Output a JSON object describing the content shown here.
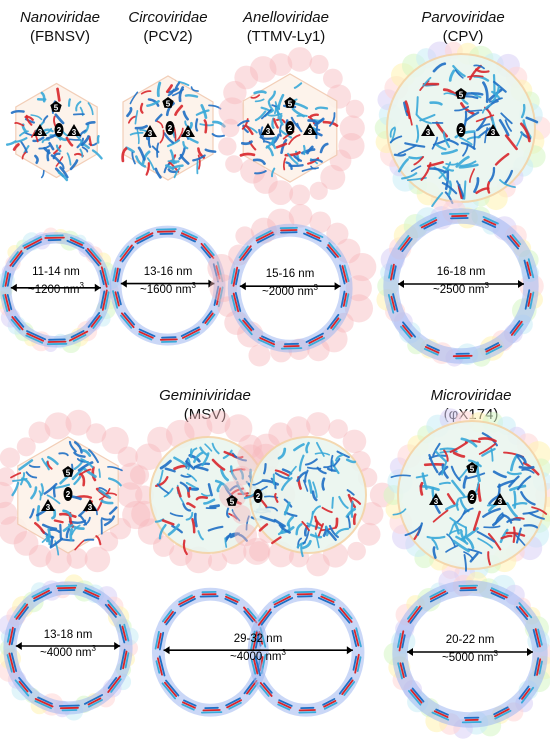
{
  "families": [
    {
      "name": "Nanoviridae",
      "strain": "(FBNSV)"
    },
    {
      "name": "Circoviridae",
      "strain": "(PCV2)"
    },
    {
      "name": "Anelloviridae",
      "strain": "(TTMV-Ly1)"
    },
    {
      "name": "Parvoviridae",
      "strain": "(CPV)"
    },
    {
      "name": "Geminiviridae",
      "strain": "(MSV)"
    },
    {
      "name": "Microviridae",
      "strain": "(φX174)"
    }
  ],
  "sections": [
    {
      "diameter": "11-14 nm",
      "volume": "~1200 nm",
      "exp": "3"
    },
    {
      "diameter": "13-16 nm",
      "volume": "~1600 nm",
      "exp": "3"
    },
    {
      "diameter": "15-16 nm",
      "volume": "~2000 nm",
      "exp": "3"
    },
    {
      "diameter": "16-18 nm",
      "volume": "~2500 nm",
      "exp": "3"
    },
    {
      "diameter": "13-18 nm",
      "volume": "~4000 nm",
      "exp": "3"
    },
    {
      "diameter": "29-32 nm",
      "volume": "~4000 nm",
      "exp": "3"
    },
    {
      "diameter": "20-22 nm",
      "volume": "~5000 nm",
      "exp": "3"
    }
  ],
  "symmetry_labels": {
    "fivefold": "5",
    "threefold": "3",
    "twofold": "2"
  },
  "colors": {
    "blue_strand": "#1f6fc4",
    "cyan_strand": "#39a9d8",
    "red_strand": "#d8262b",
    "halo_pink": "#f6b7bd",
    "halo_rainbow": [
      "#ffd6d6",
      "#fff2b0",
      "#d6f5c4",
      "#c8ecf5",
      "#d8d0f5"
    ],
    "interior_blue": "#9fb6f0"
  }
}
